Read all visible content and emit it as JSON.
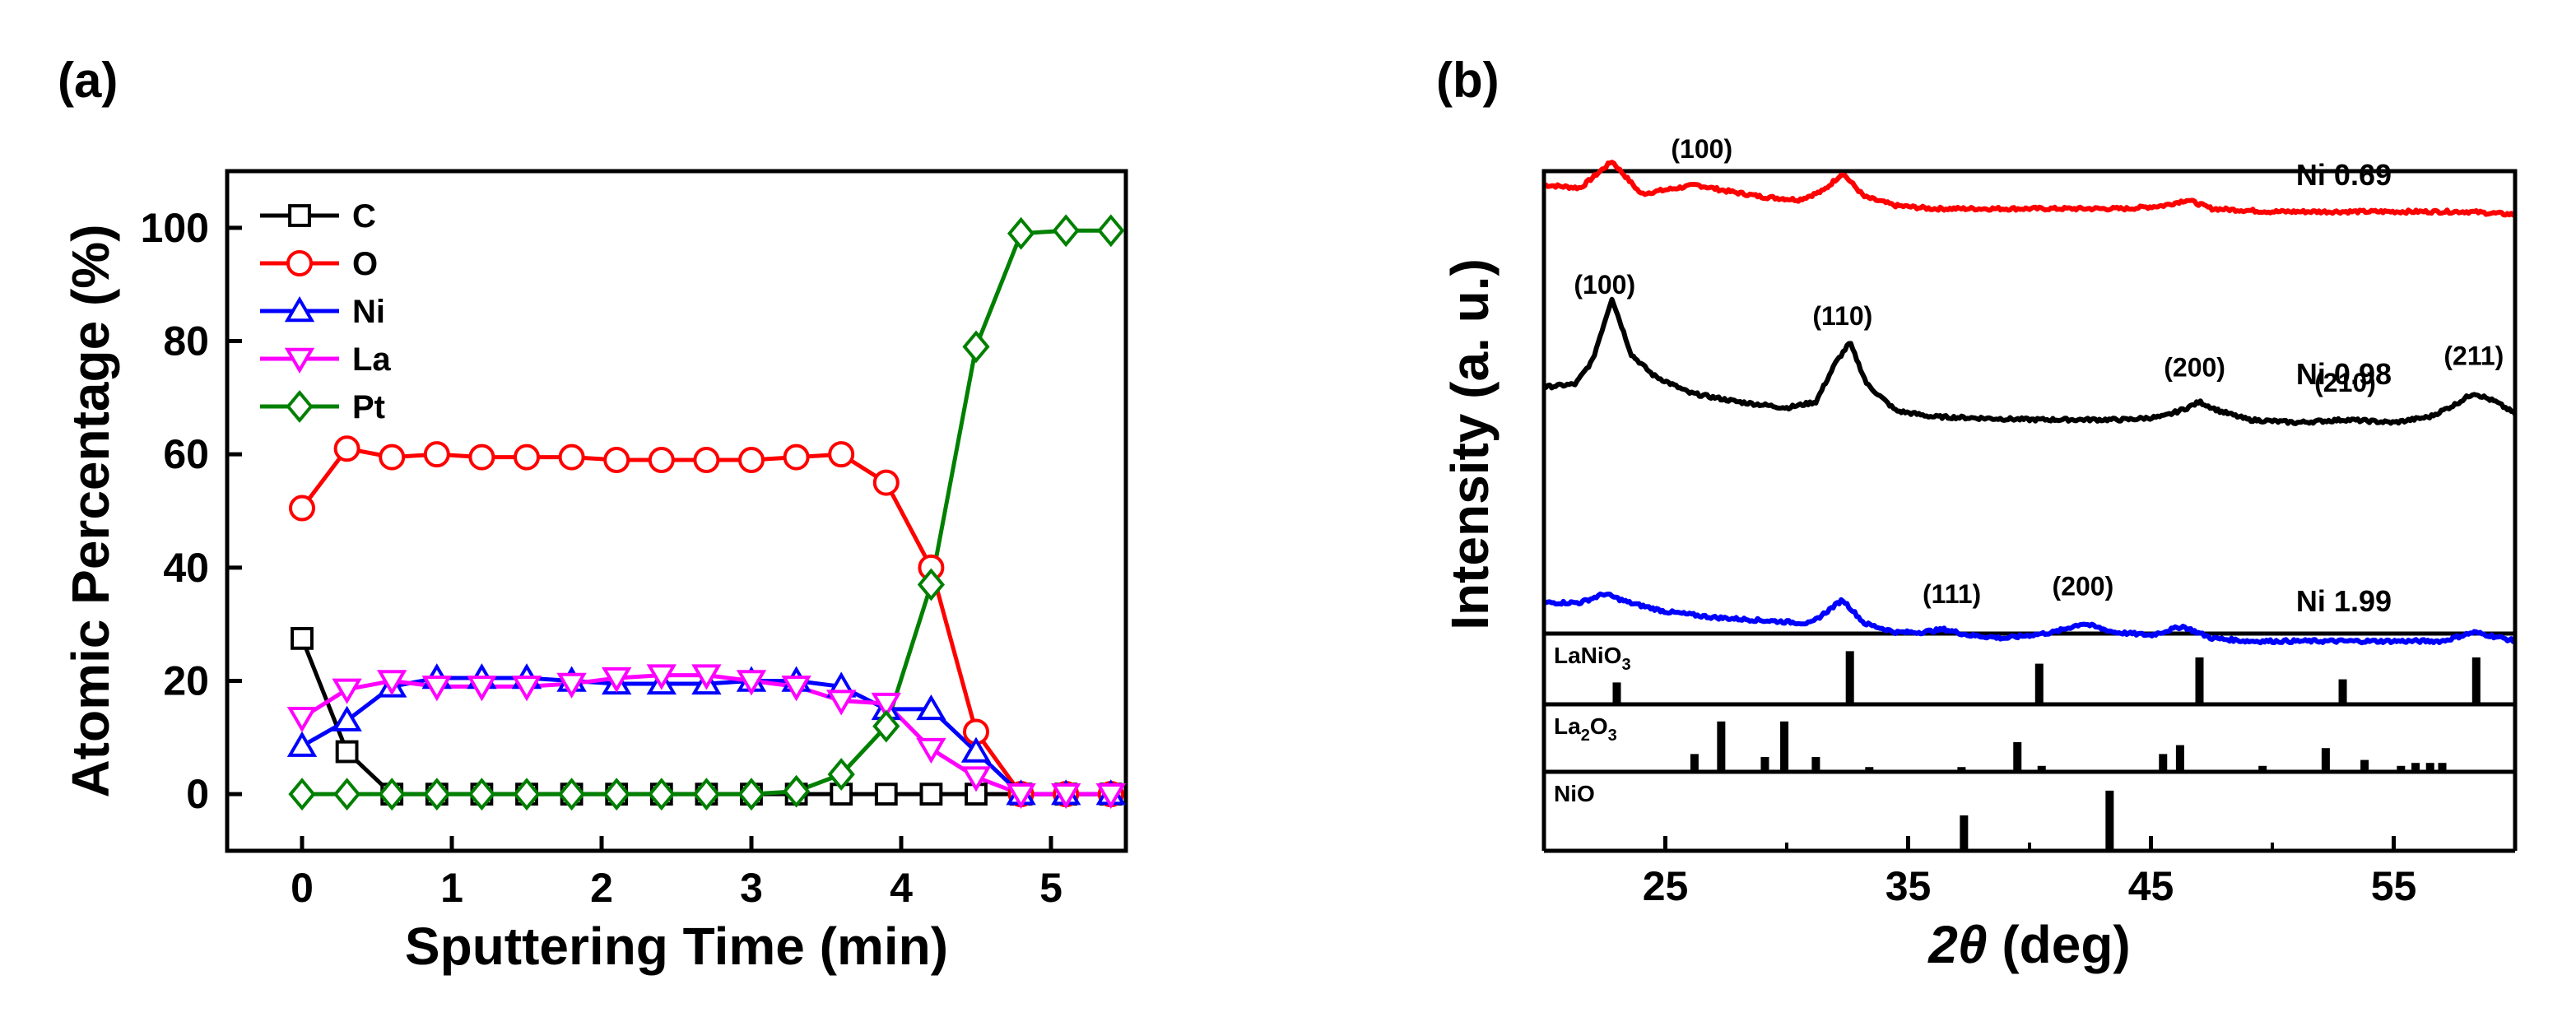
{
  "panels": {
    "a": "(a)",
    "b": "(b)"
  },
  "chart_data": [
    {
      "type": "line",
      "panel": "(a)",
      "xlabel": "Sputtering Time (min)",
      "ylabel": "Atomic Percentage (%)",
      "xlim": [
        -0.5,
        5.5
      ],
      "ylim": [
        -10,
        110
      ],
      "xticks": [
        0,
        1,
        2,
        3,
        4,
        5
      ],
      "yticks": [
        0,
        20,
        40,
        60,
        80,
        100
      ],
      "legend_position": "top-left",
      "x": [
        0,
        0.3,
        0.6,
        0.9,
        1.2,
        1.5,
        1.8,
        2.1,
        2.4,
        2.7,
        3.0,
        3.3,
        3.6,
        3.9,
        4.2,
        4.5,
        4.8,
        5.1,
        5.4
      ],
      "series": [
        {
          "name": "C",
          "color": "#000000",
          "marker": "square",
          "values": [
            27.5,
            7.5,
            0,
            0,
            0,
            0,
            0,
            0,
            0,
            0,
            0,
            0,
            0,
            0,
            0,
            0,
            0,
            0,
            0
          ]
        },
        {
          "name": "O",
          "color": "#ff0000",
          "marker": "circle",
          "values": [
            50.5,
            61,
            59.5,
            60,
            59.5,
            59.5,
            59.5,
            59,
            59,
            59,
            59,
            59.5,
            60,
            55,
            40,
            11,
            0,
            0,
            0
          ]
        },
        {
          "name": "Ni",
          "color": "#0000ff",
          "marker": "triangle-up",
          "values": [
            8.5,
            13,
            19,
            20.5,
            20.5,
            20.5,
            20,
            19.5,
            19.5,
            19.5,
            20,
            20,
            19,
            15,
            15,
            7.5,
            0,
            0,
            0
          ]
        },
        {
          "name": "La",
          "color": "#ff00ff",
          "marker": "triangle-down",
          "values": [
            13.5,
            18.5,
            20,
            19,
            19,
            19,
            19.5,
            20.5,
            21,
            21,
            20,
            19,
            16.5,
            16,
            8,
            3,
            0,
            0,
            0
          ]
        },
        {
          "name": "Pt",
          "color": "#008000",
          "marker": "diamond",
          "values": [
            0,
            0,
            0,
            0,
            0,
            0,
            0,
            0,
            0,
            0,
            0,
            0.5,
            3.5,
            12,
            37,
            79,
            99,
            99.5,
            99.5
          ]
        }
      ]
    },
    {
      "type": "line",
      "panel": "(b)",
      "xlabel_symbol": "2θ",
      "xlabel_unit": " (deg)",
      "ylabel": "Intensity (a. u.)",
      "xlim": [
        20,
        60
      ],
      "xticks": [
        25,
        35,
        45,
        55
      ],
      "series": [
        {
          "name": "Ni 0.69",
          "color": "#ff0000",
          "x": [
            20,
            21.5,
            22.8,
            24,
            25.5,
            26.3,
            27.5,
            29,
            30.5,
            31.5,
            32.3,
            33.2,
            34.5,
            36,
            40,
            44,
            45.5,
            46.5,
            47.5,
            50,
            55,
            58,
            60
          ],
          "y": [
            92,
            91,
            100,
            89,
            91,
            92,
            90,
            88,
            87,
            90,
            96,
            88,
            85,
            84,
            84,
            84,
            85,
            87,
            84,
            83,
            83,
            83,
            82
          ]
        },
        {
          "name": "Ni 0.98",
          "color": "#000000",
          "x": [
            20,
            21.3,
            22,
            22.8,
            23.6,
            24.5,
            26,
            28,
            30,
            31.2,
            32,
            32.6,
            33.3,
            34.5,
            36,
            40,
            44,
            45.5,
            46.5,
            47,
            47.8,
            49,
            51,
            53,
            55,
            56.5,
            57.5,
            58.3,
            59.2,
            60
          ],
          "y": [
            71,
            72,
            80,
            101,
            82,
            75,
            69,
            66,
            64,
            66,
            79,
            86,
            72,
            63,
            61,
            60,
            60,
            61,
            64,
            66,
            63,
            60,
            59,
            60,
            59,
            61,
            65,
            69,
            66,
            62
          ]
        },
        {
          "name": "Ni 1.99",
          "color": "#0000ff",
          "x": [
            20,
            21.5,
            22.5,
            23.5,
            25,
            27,
            29,
            31,
            32.3,
            33.2,
            34.5,
            35.5,
            36.5,
            37.5,
            39,
            41,
            42.2,
            43.5,
            45,
            46.3,
            47.5,
            49,
            52,
            55,
            57,
            58.3,
            59.5,
            60
          ],
          "y": [
            51,
            51,
            54,
            51,
            48,
            46,
            45,
            44,
            52,
            44,
            41,
            41,
            42,
            40,
            39,
            41,
            44,
            41,
            40,
            43,
            39,
            38,
            38,
            38,
            38,
            41,
            39,
            38
          ]
        }
      ],
      "peak_labels": [
        {
          "text": "(100)",
          "x": 26.5,
          "series": "Ni 0.69"
        },
        {
          "text": "(100)",
          "x": 22.5,
          "series": "Ni 0.98"
        },
        {
          "text": "(110)",
          "x": 32.3,
          "series": "Ni 0.98"
        },
        {
          "text": "(200)",
          "x": 46.8,
          "series": "Ni 0.98"
        },
        {
          "text": "(210)",
          "x": 53,
          "series": "Ni 0.98"
        },
        {
          "text": "(211)",
          "x": 58.3,
          "series": "Ni 0.98"
        },
        {
          "text": "(111)",
          "x": 36.8,
          "series": "Ni 1.99"
        },
        {
          "text": "(200)",
          "x": 42.2,
          "series": "Ni 1.99"
        }
      ],
      "reference_patterns": [
        {
          "name": "LaNiO",
          "sub1": "3",
          "sub2": "",
          "part2": "",
          "peaks": [
            [
              23.0,
              0.35
            ],
            [
              32.6,
              0.85
            ],
            [
              40.4,
              0.65
            ],
            [
              47.0,
              0.75
            ],
            [
              52.9,
              0.4
            ],
            [
              58.4,
              0.75
            ]
          ]
        },
        {
          "name": "La",
          "sub1": "2",
          "part2": "O",
          "sub2": "3",
          "peaks": [
            [
              26.2,
              0.3
            ],
            [
              27.3,
              0.85
            ],
            [
              29.1,
              0.25
            ],
            [
              29.9,
              0.85
            ],
            [
              31.2,
              0.25
            ],
            [
              33.4,
              0.08
            ],
            [
              37.2,
              0.08
            ],
            [
              39.5,
              0.5
            ],
            [
              40.5,
              0.1
            ],
            [
              45.5,
              0.3
            ],
            [
              46.2,
              0.45
            ],
            [
              49.6,
              0.1
            ],
            [
              52.2,
              0.4
            ],
            [
              53.8,
              0.2
            ],
            [
              55.3,
              0.1
            ],
            [
              55.9,
              0.15
            ],
            [
              56.5,
              0.15
            ],
            [
              57.0,
              0.15
            ]
          ]
        },
        {
          "name": "NiO",
          "sub1": "",
          "part2": "",
          "sub2": "",
          "peaks": [
            [
              37.3,
              0.5
            ],
            [
              43.3,
              0.85
            ]
          ]
        }
      ]
    }
  ]
}
